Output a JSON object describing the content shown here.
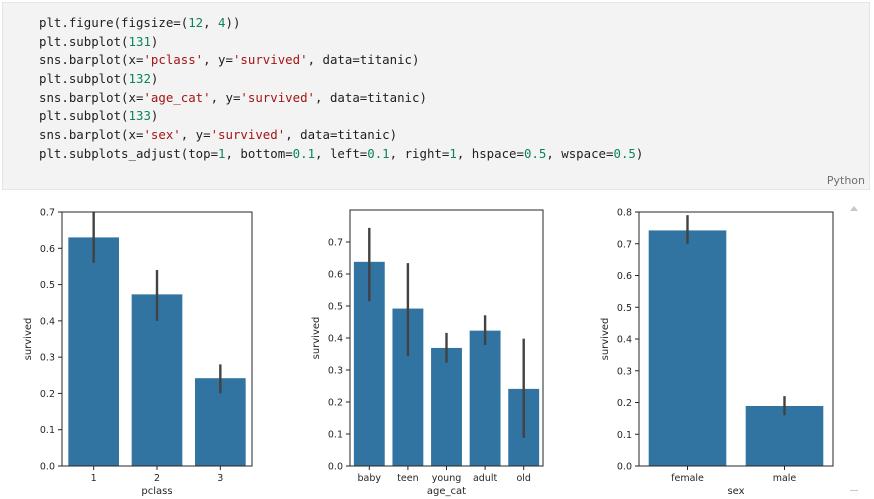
{
  "cell": {
    "language": "Python",
    "lines": [
      [
        [
          "plt.figure(figsize=(",
          "plain"
        ],
        [
          "12",
          "num"
        ],
        [
          ", ",
          "plain"
        ],
        [
          "4",
          "num"
        ],
        [
          "))",
          "plain"
        ]
      ],
      [
        [
          "plt.subplot(",
          "plain"
        ],
        [
          "131",
          "num"
        ],
        [
          ")",
          "plain"
        ]
      ],
      [
        [
          "sns.barplot(x=",
          "plain"
        ],
        [
          "'pclass'",
          "str"
        ],
        [
          ", y=",
          "plain"
        ],
        [
          "'survived'",
          "str"
        ],
        [
          ", data=titanic)",
          "plain"
        ]
      ],
      [
        [
          "plt.subplot(",
          "plain"
        ],
        [
          "132",
          "num"
        ],
        [
          ")",
          "plain"
        ]
      ],
      [
        [
          "sns.barplot(x=",
          "plain"
        ],
        [
          "'age_cat'",
          "str"
        ],
        [
          ", y=",
          "plain"
        ],
        [
          "'survived'",
          "str"
        ],
        [
          ", data=titanic)",
          "plain"
        ]
      ],
      [
        [
          "plt.subplot(",
          "plain"
        ],
        [
          "133",
          "num"
        ],
        [
          ")",
          "plain"
        ]
      ],
      [
        [
          "sns.barplot(x=",
          "plain"
        ],
        [
          "'sex'",
          "str"
        ],
        [
          ", y=",
          "plain"
        ],
        [
          "'survived'",
          "str"
        ],
        [
          ", data=titanic)",
          "plain"
        ]
      ],
      [
        [
          "plt.subplots_adjust(top=",
          "plain"
        ],
        [
          "1",
          "num"
        ],
        [
          ", bottom=",
          "plain"
        ],
        [
          "0.1",
          "num"
        ],
        [
          ", left=",
          "plain"
        ],
        [
          "0.1",
          "num"
        ],
        [
          ", right=",
          "plain"
        ],
        [
          "1",
          "num"
        ],
        [
          ", hspace=",
          "plain"
        ],
        [
          "0.5",
          "num"
        ],
        [
          ", wspace=",
          "plain"
        ],
        [
          "0.5",
          "num"
        ],
        [
          ")",
          "plain"
        ]
      ]
    ]
  },
  "colors": {
    "bar": "#3274a1",
    "errorbar": "#424242",
    "axis": "#262626",
    "code_string": "#a31515",
    "code_number": "#098658"
  },
  "chart_data": [
    {
      "type": "bar",
      "categories": [
        "1",
        "2",
        "3"
      ],
      "values": [
        0.63,
        0.473,
        0.242
      ],
      "errors": [
        [
          0.56,
          0.7
        ],
        [
          0.4,
          0.54
        ],
        [
          0.2,
          0.28
        ]
      ],
      "xlabel": "pclass",
      "ylabel": "survived",
      "ylim": [
        0,
        0.7
      ],
      "yticks": [
        "0.0",
        "0.1",
        "0.2",
        "0.3",
        "0.4",
        "0.5",
        "0.6",
        "0.7"
      ],
      "grid": false
    },
    {
      "type": "bar",
      "categories": [
        "baby",
        "teen",
        "young",
        "adult",
        "old"
      ],
      "values": [
        0.638,
        0.492,
        0.369,
        0.423,
        0.241
      ],
      "errors": [
        [
          0.515,
          0.744
        ],
        [
          0.343,
          0.634
        ],
        [
          0.323,
          0.416
        ],
        [
          0.378,
          0.471
        ],
        [
          0.088,
          0.398
        ]
      ],
      "xlabel": "age_cat",
      "ylabel": "survived",
      "ylim": [
        0,
        0.8
      ],
      "yticks": [
        "0.0",
        "0.1",
        "0.2",
        "0.3",
        "0.4",
        "0.5",
        "0.6",
        "0.7"
      ],
      "grid": false
    },
    {
      "type": "bar",
      "categories": [
        "female",
        "male"
      ],
      "values": [
        0.742,
        0.189
      ],
      "errors": [
        [
          0.7,
          0.79
        ],
        [
          0.16,
          0.22
        ]
      ],
      "xlabel": "sex",
      "ylabel": "survived",
      "ylim": [
        0,
        0.8
      ],
      "yticks": [
        "0.0",
        "0.1",
        "0.2",
        "0.3",
        "0.4",
        "0.5",
        "0.6",
        "0.7",
        "0.8"
      ],
      "grid": false
    }
  ]
}
